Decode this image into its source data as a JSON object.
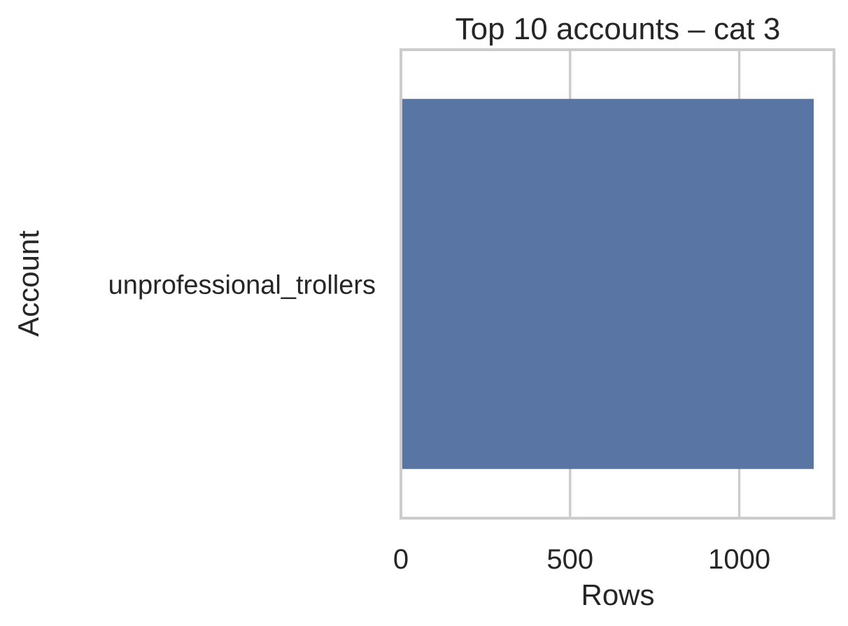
{
  "chart_data": {
    "type": "bar",
    "orientation": "horizontal",
    "title": "Top 10 accounts – cat 3",
    "xlabel": "Rows",
    "ylabel": "Account",
    "categories": [
      "unprofessional_trollers"
    ],
    "values": [
      1220
    ],
    "xlim": [
      0,
      1280
    ],
    "xticks": [
      0,
      500,
      1000
    ],
    "xtick_labels": [
      "0",
      "500",
      "1000"
    ],
    "grid": "vertical",
    "colors": {
      "bar": "#5975a4",
      "grid": "#cccccc",
      "frame": "#cccccc",
      "text": "#262626"
    }
  }
}
